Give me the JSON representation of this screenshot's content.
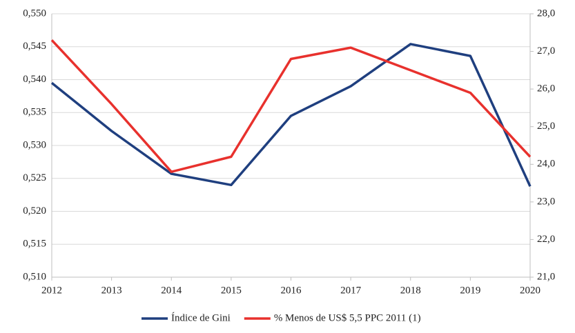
{
  "chart_data": {
    "type": "line",
    "x": [
      "2012",
      "2013",
      "2014",
      "2015",
      "2016",
      "2017",
      "2018",
      "2019",
      "2020"
    ],
    "series": [
      {
        "name": "Índice de Gini",
        "color": "#1f3f7f",
        "values": [
          0.5395,
          0.5322,
          0.5257,
          0.524,
          0.5345,
          0.539,
          0.5454,
          0.5436,
          0.5238
        ]
      },
      {
        "name": "% Menos de US$ 5,5 PPC 2011 (1)",
        "color": "#e8312d",
        "axis": "y2",
        "values": [
          27.3,
          25.6,
          23.8,
          24.2,
          26.8,
          27.1,
          26.5,
          25.9,
          24.2
        ]
      }
    ],
    "ylim": [
      0.51,
      0.55
    ],
    "yticks": [
      {
        "value": 0.51,
        "label": "0,510"
      },
      {
        "value": 0.515,
        "label": "0,515"
      },
      {
        "value": 0.52,
        "label": "0,520"
      },
      {
        "value": 0.525,
        "label": "0,525"
      },
      {
        "value": 0.53,
        "label": "0,530"
      },
      {
        "value": 0.535,
        "label": "0,535"
      },
      {
        "value": 0.54,
        "label": "0,540"
      },
      {
        "value": 0.545,
        "label": "0,545"
      },
      {
        "value": 0.55,
        "label": "0,550"
      }
    ],
    "y2lim": [
      21,
      28
    ],
    "y2ticks": [
      {
        "value": 21,
        "label": "21,0"
      },
      {
        "value": 22,
        "label": "22,0"
      },
      {
        "value": 23,
        "label": "23,0"
      },
      {
        "value": 24,
        "label": "24,0"
      },
      {
        "value": 25,
        "label": "25,0"
      },
      {
        "value": 26,
        "label": "26,0"
      },
      {
        "value": 27,
        "label": "27,0"
      },
      {
        "value": 28,
        "label": "28,0"
      }
    ],
    "grid": true,
    "legend": "bottom"
  }
}
